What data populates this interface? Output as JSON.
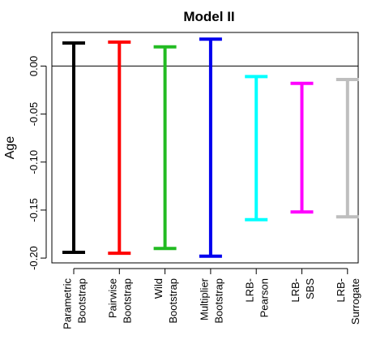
{
  "chart_data": {
    "type": "errorbar",
    "title": "Model II",
    "xlabel": "",
    "ylabel": "Age",
    "ylim": [
      -0.205,
      0.035
    ],
    "yticks": [
      0.0,
      -0.05,
      -0.1,
      -0.15,
      -0.2
    ],
    "ytick_labels": [
      "0.00",
      "-0.05",
      "-0.10",
      "-0.15",
      "-0.20"
    ],
    "reference_line": 0.0,
    "grid": false,
    "legend": "none",
    "categories": [
      {
        "lines": [
          "Parametric",
          "Bootstrap"
        ]
      },
      {
        "lines": [
          "Pairwise",
          "Bootstrap"
        ]
      },
      {
        "lines": [
          "Wild",
          "Bootstrap"
        ]
      },
      {
        "lines": [
          "Multiplier",
          "Bootstrap"
        ]
      },
      {
        "lines": [
          "LRB-",
          "Pearson"
        ]
      },
      {
        "lines": [
          "LRB-",
          "SBS"
        ]
      },
      {
        "lines": [
          "LRB-",
          "Surrogate"
        ]
      }
    ],
    "intervals": [
      {
        "lower": -0.194,
        "upper": 0.024,
        "color": "#000000"
      },
      {
        "lower": -0.195,
        "upper": 0.025,
        "color": "#ff0000"
      },
      {
        "lower": -0.19,
        "upper": 0.02,
        "color": "#22bb22"
      },
      {
        "lower": -0.198,
        "upper": 0.028,
        "color": "#0000ee"
      },
      {
        "lower": -0.16,
        "upper": -0.011,
        "color": "#00ffff"
      },
      {
        "lower": -0.152,
        "upper": -0.018,
        "color": "#ff00ff"
      },
      {
        "lower": -0.157,
        "upper": -0.014,
        "color": "#bebebe"
      }
    ]
  }
}
